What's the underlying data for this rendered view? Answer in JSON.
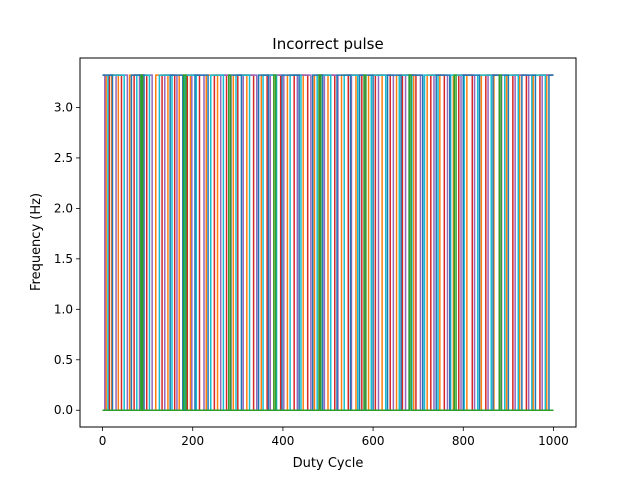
{
  "chart_data": {
    "type": "line",
    "title": "Incorrect pulse",
    "xlabel": "Duty Cycle",
    "ylabel": "Frequency (Hz)",
    "xlim": [
      -50,
      1050
    ],
    "ylim": [
      -0.166,
      3.49
    ],
    "xticks": [
      0,
      200,
      400,
      600,
      800,
      1000
    ],
    "xtick_labels": [
      "0",
      "200",
      "400",
      "600",
      "800",
      "1000"
    ],
    "yticks": [
      0.0,
      0.5,
      1.0,
      1.5,
      2.0,
      2.5,
      3.0
    ],
    "ytick_labels": [
      "0.0",
      "0.5",
      "1.0",
      "1.5",
      "2.0",
      "2.5",
      "3.0"
    ],
    "grid": false,
    "legend": false,
    "low": 0.0,
    "high": 3.32,
    "colors": [
      "#1f77b4",
      "#ff7f0e",
      "#2ca02c",
      "#d62728",
      "#9467bd",
      "#8c564b",
      "#e377c2",
      "#7f7f7f",
      "#bcbd22",
      "#17becf"
    ],
    "series": [
      {
        "color": "#ff7f0e",
        "transitions": [
          0,
          8,
          20,
          35,
          60,
          90,
          118,
          145,
          170,
          195,
          230,
          255,
          290,
          320,
          352,
          380,
          410,
          445,
          470,
          500,
          530,
          562,
          590,
          620,
          652,
          690,
          720,
          748,
          778,
          808,
          840,
          868,
          896,
          925,
          955,
          985,
          1000
        ]
      },
      {
        "color": "#d62728",
        "transitions": [
          0,
          15,
          42,
          70,
          98,
          132,
          160,
          188,
          215,
          248,
          275,
          300,
          335,
          365,
          395,
          425,
          455,
          482,
          515,
          545,
          575,
          605,
          638,
          665,
          695,
          728,
          758,
          790,
          820,
          850,
          880,
          910,
          940,
          970,
          1000
        ]
      },
      {
        "color": "#9467bd",
        "transitions": [
          0,
          5,
          30,
          55,
          82,
          110,
          138,
          165,
          198,
          225,
          262,
          285,
          312,
          342,
          372,
          402,
          432,
          462,
          492,
          522,
          552,
          582,
          612,
          645,
          672,
          705,
          735,
          765,
          795,
          825,
          855,
          885,
          915,
          945,
          975,
          1000
        ]
      },
      {
        "color": "#17becf",
        "transitions": [
          0,
          12,
          48,
          76,
          104,
          126,
          154,
          182,
          208,
          240,
          268,
          296,
          326,
          356,
          386,
          416,
          440,
          476,
          506,
          536,
          566,
          596,
          628,
          658,
          686,
          714,
          744,
          772,
          802,
          832,
          862,
          892,
          922,
          952,
          982,
          1000
        ]
      },
      {
        "color": "#1f77b4",
        "transitions": [
          0,
          22,
          64,
          92,
          150,
          178,
          205,
          234,
          280,
          308,
          346,
          368,
          398,
          436,
          466,
          488,
          520,
          550,
          570,
          600,
          632,
          662,
          680,
          710,
          740,
          770,
          800,
          836,
          866,
          900,
          930,
          960,
          990,
          1000
        ]
      },
      {
        "color": "#2ca02c",
        "transitions": [
          0,
          85,
          88,
          180,
          185,
          280,
          284,
          380,
          384,
          480,
          484,
          580,
          584,
          680,
          684,
          780,
          784,
          880,
          884,
          1000
        ]
      }
    ]
  }
}
